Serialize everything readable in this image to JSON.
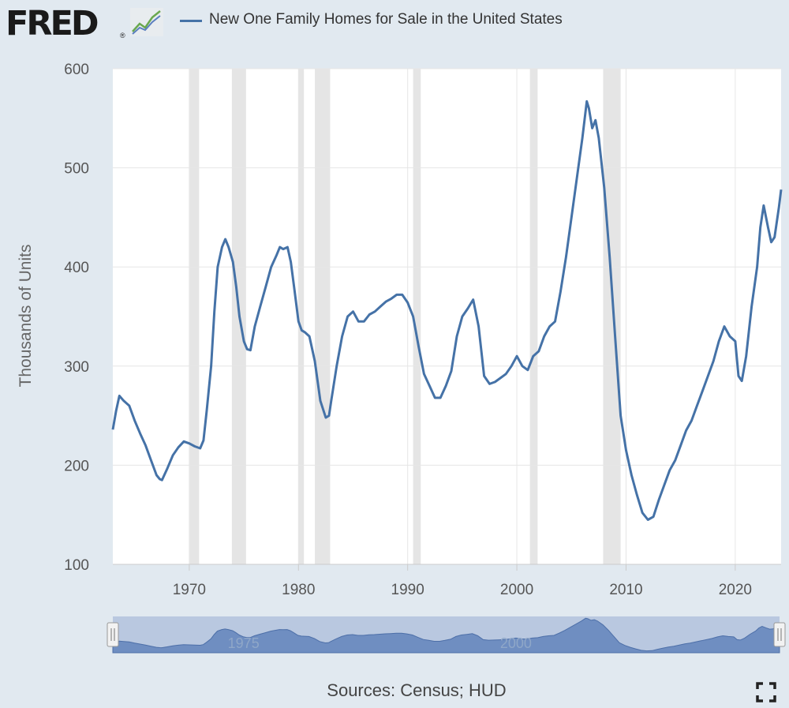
{
  "header": {
    "logo": "FRED",
    "logo_mark": "®",
    "legend_label": "New One Family Homes for Sale in the United States"
  },
  "footer": {
    "source": "Sources: Census; HUD"
  },
  "icons": {
    "logo_chart": "line-chart-icon",
    "fullscreen": "fullscreen-icon"
  },
  "colors": {
    "series": "#4572a7",
    "plot_background": "#ffffff",
    "page_background": "#e1e9f0",
    "recession": "#e5e5e5",
    "navigator_fill": "#6f8ec1"
  },
  "chart_data": {
    "type": "line",
    "ylabel": "Thousands of Units",
    "xlabel": "",
    "xlim": [
      1963.0,
      2024.2
    ],
    "ylim": [
      100,
      600
    ],
    "yticks": [
      100,
      200,
      300,
      400,
      500,
      600
    ],
    "xticks": [
      1970,
      1980,
      1990,
      2000,
      2010,
      2020
    ],
    "navigator_ticks": [
      1975,
      2000
    ],
    "grid": true,
    "legend": "top",
    "recessions": [
      [
        1970.0,
        1970.9
      ],
      [
        1973.9,
        1975.2
      ],
      [
        1980.0,
        1980.5
      ],
      [
        1981.5,
        1982.9
      ],
      [
        1990.5,
        1991.2
      ],
      [
        2001.2,
        2001.9
      ],
      [
        2007.9,
        2009.5
      ]
    ],
    "series": [
      {
        "name": "New One Family Homes for Sale in the United States",
        "x": [
          1963.0,
          1963.3,
          1963.6,
          1964.0,
          1964.5,
          1965.0,
          1965.5,
          1966.0,
          1966.5,
          1967.0,
          1967.3,
          1967.5,
          1968.0,
          1968.5,
          1969.0,
          1969.5,
          1970.0,
          1970.5,
          1971.0,
          1971.3,
          1971.6,
          1972.0,
          1972.3,
          1972.6,
          1973.0,
          1973.3,
          1973.6,
          1974.0,
          1974.3,
          1974.6,
          1975.0,
          1975.3,
          1975.6,
          1976.0,
          1976.5,
          1977.0,
          1977.5,
          1978.0,
          1978.3,
          1978.6,
          1979.0,
          1979.3,
          1979.6,
          1980.0,
          1980.3,
          1980.6,
          1981.0,
          1981.5,
          1982.0,
          1982.5,
          1982.8,
          1983.0,
          1983.5,
          1984.0,
          1984.5,
          1985.0,
          1985.5,
          1986.0,
          1986.5,
          1987.0,
          1987.5,
          1988.0,
          1988.5,
          1989.0,
          1989.5,
          1990.0,
          1990.5,
          1991.0,
          1991.5,
          1992.0,
          1992.5,
          1993.0,
          1993.5,
          1994.0,
          1994.5,
          1995.0,
          1995.5,
          1996.0,
          1996.5,
          1997.0,
          1997.5,
          1998.0,
          1998.5,
          1999.0,
          1999.5,
          2000.0,
          2000.5,
          2001.0,
          2001.5,
          2002.0,
          2002.5,
          2003.0,
          2003.5,
          2004.0,
          2004.5,
          2005.0,
          2005.5,
          2006.0,
          2006.4,
          2006.6,
          2006.9,
          2007.2,
          2007.5,
          2008.0,
          2008.5,
          2009.0,
          2009.5,
          2010.0,
          2010.5,
          2011.0,
          2011.5,
          2012.0,
          2012.5,
          2013.0,
          2013.5,
          2014.0,
          2014.5,
          2015.0,
          2015.5,
          2016.0,
          2016.5,
          2017.0,
          2017.5,
          2018.0,
          2018.5,
          2019.0,
          2019.5,
          2020.0,
          2020.3,
          2020.6,
          2021.0,
          2021.5,
          2022.0,
          2022.3,
          2022.6,
          2023.0,
          2023.3,
          2023.6,
          2024.0,
          2024.2
        ],
        "values": [
          236,
          255,
          270,
          265,
          260,
          245,
          232,
          220,
          205,
          190,
          186,
          185,
          197,
          210,
          218,
          224,
          222,
          219,
          217,
          225,
          255,
          300,
          355,
          400,
          420,
          428,
          420,
          405,
          380,
          350,
          325,
          317,
          316,
          340,
          360,
          380,
          400,
          412,
          420,
          418,
          420,
          405,
          380,
          345,
          336,
          334,
          330,
          305,
          265,
          248,
          250,
          265,
          300,
          330,
          350,
          355,
          345,
          345,
          352,
          355,
          360,
          365,
          368,
          372,
          372,
          364,
          350,
          320,
          292,
          280,
          268,
          268,
          280,
          295,
          330,
          350,
          358,
          367,
          340,
          290,
          282,
          284,
          288,
          292,
          300,
          310,
          300,
          296,
          310,
          315,
          330,
          340,
          345,
          375,
          410,
          450,
          490,
          530,
          567,
          560,
          540,
          548,
          530,
          480,
          410,
          330,
          250,
          215,
          190,
          170,
          152,
          145,
          148,
          165,
          180,
          195,
          205,
          220,
          235,
          245,
          260,
          275,
          290,
          305,
          325,
          340,
          330,
          325,
          290,
          285,
          310,
          360,
          400,
          440,
          462,
          440,
          425,
          430,
          460,
          478
        ]
      }
    ]
  }
}
